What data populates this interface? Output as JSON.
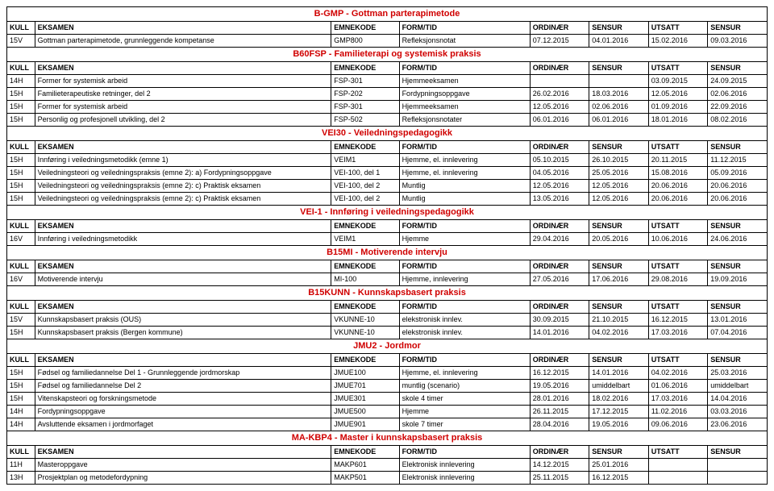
{
  "headers": {
    "kull": "KULL",
    "eksamen": "EKSAMEN",
    "emnekode": "EMNEKODE",
    "formtid": "FORM/TID",
    "ordinaer": "ORDINÆR",
    "sensur1": "SENSUR",
    "utsatt": "UTSATT",
    "sensur2": "SENSUR"
  },
  "sections": [
    {
      "title": "B-GMP - Gottman parterapimetode",
      "rows": [
        {
          "kull": "15V",
          "eks": "Gottman parterapimetode, grunnleggende kompetanse",
          "emn": "GMP800",
          "form": "Refleksjonsnotat",
          "d1": "07.12.2015",
          "d2": "04.01.2016",
          "d3": "15.02.2016",
          "d4": "09.03.2016"
        }
      ]
    },
    {
      "title": "B60FSP - Familieterapi og systemisk praksis",
      "rows": [
        {
          "kull": "14H",
          "eks": "Former for systemisk arbeid",
          "emn": "FSP-301",
          "form": "Hjemmeeksamen",
          "d1": "",
          "d2": "",
          "d3": "03.09.2015",
          "d4": "24.09.2015"
        },
        {
          "kull": "15H",
          "eks": "Familieterapeutiske retninger, del 2",
          "emn": "FSP-202",
          "form": "Fordypningsoppgave",
          "d1": "26.02.2016",
          "d2": "18.03.2016",
          "d3": "12.05.2016",
          "d4": "02.06.2016"
        },
        {
          "kull": "15H",
          "eks": "Former for systemisk arbeid",
          "emn": "FSP-301",
          "form": "Hjemmeeksamen",
          "d1": "12.05.2016",
          "d2": "02.06.2016",
          "d3": "01.09.2016",
          "d4": "22.09.2016"
        },
        {
          "kull": "15H",
          "eks": "Personlig og profesjonell utvikling, del 2",
          "emn": "FSP-502",
          "form": "Refleksjonsnotater",
          "d1": "06.01.2016",
          "d2": "06.01.2016",
          "d3": "18.01.2016",
          "d4": "08.02.2016"
        }
      ]
    },
    {
      "title": "VEI30  - Veiledningspedagogikk",
      "rows": [
        {
          "kull": "15H",
          "eks": "Innføring i veiledningsmetodikk (emne 1)",
          "emn": "VEIM1",
          "form": "Hjemme, el. innlevering",
          "d1": "05.10.2015",
          "d2": "26.10.2015",
          "d3": "20.11.2015",
          "d4": "11.12.2015"
        },
        {
          "kull": "15H",
          "eks": "Veiledningsteori og veiledningspraksis (emne 2): a) Fordypningsoppgave",
          "emn": "VEI-100, del 1",
          "form": "Hjemme, el. innlevering",
          "d1": "04.05.2016",
          "d2": "25.05.2016",
          "d3": "15.08.2016",
          "d4": "05.09.2016"
        },
        {
          "kull": "15H",
          "eks": "Veiledningsteori og veiledningspraksis (emne 2): c) Praktisk eksamen",
          "emn": "VEI-100, del 2",
          "form": "Muntlig",
          "d1": "12.05.2016",
          "d2": "12.05.2016",
          "d3": "20.06.2016",
          "d4": "20.06.2016"
        },
        {
          "kull": "15H",
          "eks": "Veiledningsteori og veiledningspraksis (emne 2): c) Praktisk eksamen",
          "emn": "VEI-100, del 2",
          "form": "Muntlig",
          "d1": "13.05.2016",
          "d2": "12.05.2016",
          "d3": "20.06.2016",
          "d4": "20.06.2016"
        }
      ]
    },
    {
      "title": "VEI-1  - Innføring i veiledningspedagogikk",
      "rows": [
        {
          "kull": "16V",
          "eks": "Innføring i veiledningsmetodikk",
          "emn": "VEIM1",
          "form": "Hjemme",
          "d1": "29.04.2016",
          "d2": "20.05.2016",
          "d3": "10.06.2016",
          "d4": "24.06.2016"
        }
      ]
    },
    {
      "title": "B15MI - Motiverende intervju",
      "rows": [
        {
          "kull": "16V",
          "eks": "Motiverende intervju",
          "emn": "MI-100",
          "form": "Hjemme, innlevering",
          "d1": "27.05.2016",
          "d2": "17.06.2016",
          "d3": "29.08.2016",
          "d4": "19.09.2016"
        }
      ]
    },
    {
      "title": "B15KUNN - Kunnskapsbasert praksis",
      "rows": [
        {
          "kull": "15V",
          "eks": "Kunnskapsbasert praksis (OUS)",
          "emn": "VKUNNE-10",
          "form": "elekstronisk innlev.",
          "d1": "30.09.2015",
          "d2": "21.10.2015",
          "d3": "16.12.2015",
          "d4": "13.01.2016"
        },
        {
          "kull": "15H",
          "eks": "Kunnskapsbasert praksis (Bergen kommune)",
          "emn": "VKUNNE-10",
          "form": "elekstronisk innlev.",
          "d1": "14.01.2016",
          "d2": "04.02.2016",
          "d3": "17.03.2016",
          "d4": "07.04.2016"
        }
      ]
    },
    {
      "title": "JMU2 - Jordmor",
      "rows": [
        {
          "kull": "15H",
          "eks": "Fødsel og familiedannelse Del 1 - Grunnleggende jordmorskap",
          "emn": "JMUE100",
          "form": "Hjemme, el. innlevering",
          "d1": "16.12.2015",
          "d2": "14.01.2016",
          "d3": "04.02.2016",
          "d4": "25.03.2016"
        },
        {
          "kull": "15H",
          "eks": "Fødsel og familiedannelse Del 2",
          "emn": "JMUE701",
          "form": "muntlig (scenario)",
          "d1": "19.05.2016",
          "d2": "umiddelbart",
          "d3": "01.06.2016",
          "d4": "umiddelbart"
        },
        {
          "kull": "15H",
          "eks": "Vitenskapsteori og forskningsmetode",
          "emn": "JMUE301",
          "form": "skole 4 timer",
          "d1": "28.01.2016",
          "d2": "18.02.2016",
          "d3": "17.03.2016",
          "d4": "14.04.2016"
        },
        {
          "kull": "14H",
          "eks": "Fordypningsoppgave",
          "emn": "JMUE500",
          "form": "Hjemme",
          "d1": "26.11.2015",
          "d2": "17.12.2015",
          "d3": "11.02.2016",
          "d4": "03.03.2016"
        },
        {
          "kull": "14H",
          "eks": "Avsluttende eksamen i jordmorfaget",
          "emn": "JMUE901",
          "form": "skole 7 timer",
          "d1": "28.04.2016",
          "d2": "19.05.2016",
          "d3": "09.06.2016",
          "d4": "23.06.2016"
        }
      ]
    },
    {
      "title": "MA-KBP4 - Master i kunnskapsbasert praksis",
      "rows": [
        {
          "kull": "11H",
          "eks": "Masteroppgave",
          "emn": "MAKP601",
          "form": "Elektronisk innlevering",
          "d1": "14.12.2015",
          "d2": "25.01.2016",
          "d3": "",
          "d4": ""
        },
        {
          "kull": "13H",
          "eks": "Prosjektplan og metodefordypning",
          "emn": "MAKP501",
          "form": "Elektronisk innlevering",
          "d1": "25.11.2015",
          "d2": "16.12.2015",
          "d3": "",
          "d4": ""
        }
      ]
    }
  ]
}
